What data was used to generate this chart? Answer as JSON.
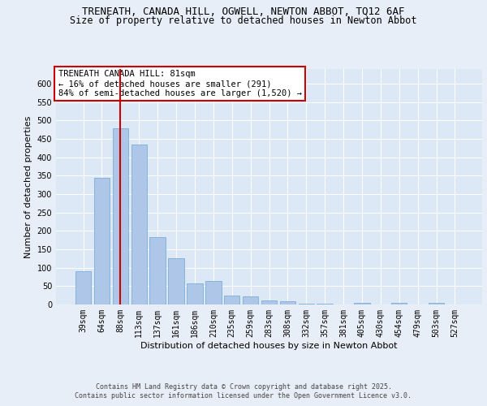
{
  "title1": "TRENEATH, CANADA HILL, OGWELL, NEWTON ABBOT, TQ12 6AF",
  "title2": "Size of property relative to detached houses in Newton Abbot",
  "xlabel": "Distribution of detached houses by size in Newton Abbot",
  "ylabel": "Number of detached properties",
  "categories": [
    "39sqm",
    "64sqm",
    "88sqm",
    "113sqm",
    "137sqm",
    "161sqm",
    "186sqm",
    "210sqm",
    "235sqm",
    "259sqm",
    "283sqm",
    "308sqm",
    "332sqm",
    "357sqm",
    "381sqm",
    "405sqm",
    "430sqm",
    "454sqm",
    "479sqm",
    "503sqm",
    "527sqm"
  ],
  "values": [
    90,
    345,
    480,
    435,
    183,
    125,
    58,
    65,
    25,
    22,
    12,
    8,
    2,
    2,
    1,
    5,
    0,
    5,
    0,
    5,
    0
  ],
  "bar_color": "#aec6e8",
  "bar_edgecolor": "#7aafd4",
  "vline_index": 2,
  "vline_color": "#cc0000",
  "annotation_text": "TRENEATH CANADA HILL: 81sqm\n← 16% of detached houses are smaller (291)\n84% of semi-detached houses are larger (1,520) →",
  "annotation_box_facecolor": "#ffffff",
  "annotation_box_edgecolor": "#cc0000",
  "ylim": [
    0,
    640
  ],
  "yticks": [
    0,
    50,
    100,
    150,
    200,
    250,
    300,
    350,
    400,
    450,
    500,
    550,
    600
  ],
  "bg_color": "#e8eef7",
  "plot_bg_color": "#dce8f5",
  "footer_line1": "Contains HM Land Registry data © Crown copyright and database right 2025.",
  "footer_line2": "Contains public sector information licensed under the Open Government Licence v3.0.",
  "title1_fontsize": 9,
  "title2_fontsize": 8.5,
  "axis_label_fontsize": 8,
  "tick_fontsize": 7,
  "annotation_fontsize": 7.5,
  "footer_fontsize": 6,
  "ylabel_fontsize": 8
}
